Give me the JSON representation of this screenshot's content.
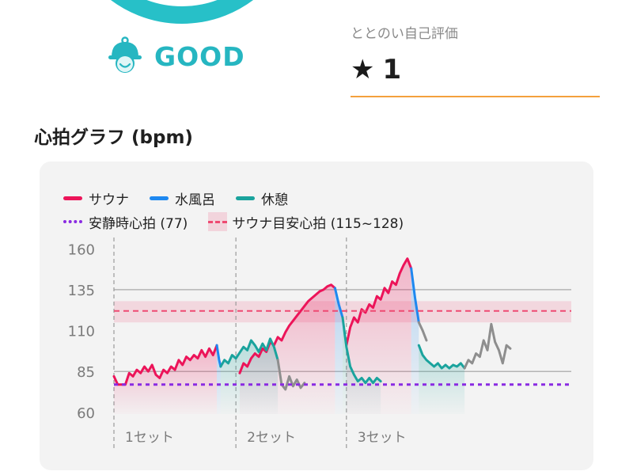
{
  "status": {
    "label": "GOOD",
    "icon": "hat-face-icon",
    "color": "#26b6c1"
  },
  "self_rating": {
    "label": "ととのい自己評価",
    "icon": "star-icon",
    "value": "1"
  },
  "section_title": "心拍グラフ (bpm)",
  "legend": {
    "sauna": "サウナ",
    "cold_bath": "水風呂",
    "rest": "休憩",
    "resting_hr": "安静時心拍 (77)",
    "target_hr": "サウナ目安心拍 (115~128)"
  },
  "colors": {
    "sauna": "#ec1459",
    "cold_bath": "#1e88f0",
    "rest": "#1aa39d",
    "other": "#8e8e8e",
    "resting": "#8a2be2",
    "target": "#ee4a72"
  },
  "chart_data": {
    "type": "line",
    "ylim": [
      58,
      164
    ],
    "yticks": [
      60,
      85,
      110,
      135,
      160
    ],
    "resting_hr": 77,
    "target_band": [
      115,
      128
    ],
    "target_line": 122,
    "set_labels": [
      "1セット",
      "2セット",
      "3セット"
    ],
    "set_starts": [
      0,
      16,
      30.5
    ],
    "xlim": [
      0,
      60
    ],
    "series": [
      {
        "name": "サウナ",
        "kind": "sauna",
        "points": [
          [
            0,
            82
          ],
          [
            0.5,
            77
          ],
          [
            1.5,
            77
          ],
          [
            2,
            84
          ],
          [
            2.5,
            82
          ],
          [
            3,
            86
          ],
          [
            3.5,
            84
          ],
          [
            4,
            88
          ],
          [
            4.5,
            85
          ],
          [
            5,
            89
          ],
          [
            5.5,
            83
          ],
          [
            6,
            81
          ],
          [
            6.5,
            86
          ],
          [
            7,
            84
          ],
          [
            7.5,
            88
          ],
          [
            8,
            86
          ],
          [
            8.5,
            92
          ],
          [
            9,
            89
          ],
          [
            9.5,
            94
          ],
          [
            10,
            92
          ],
          [
            10.5,
            95
          ],
          [
            11,
            93
          ],
          [
            11.5,
            98
          ],
          [
            12,
            94
          ],
          [
            12.5,
            99
          ],
          [
            13,
            95
          ],
          [
            13.5,
            101
          ],
          [
            16.5,
            84
          ],
          [
            17,
            90
          ],
          [
            17.5,
            88
          ],
          [
            18,
            93
          ],
          [
            18.5,
            96
          ],
          [
            19,
            94
          ],
          [
            19.5,
            99
          ],
          [
            20,
            97
          ],
          [
            20.5,
            103
          ],
          [
            21,
            101
          ],
          [
            21.5,
            106
          ],
          [
            22,
            104
          ],
          [
            22.5,
            109
          ],
          [
            23,
            113
          ],
          [
            23.5,
            116
          ],
          [
            24,
            119
          ],
          [
            24.5,
            122
          ],
          [
            25,
            125
          ],
          [
            25.5,
            128
          ],
          [
            26,
            130
          ],
          [
            26.5,
            132
          ],
          [
            27,
            134
          ],
          [
            27.5,
            135
          ],
          [
            28,
            137
          ],
          [
            28.5,
            138
          ],
          [
            29,
            136
          ],
          [
            30.5,
            101
          ],
          [
            31,
            112
          ],
          [
            31.5,
            118
          ],
          [
            32,
            115
          ],
          [
            32.5,
            123
          ],
          [
            33,
            121
          ],
          [
            33.5,
            126
          ],
          [
            34,
            124
          ],
          [
            34.5,
            131
          ],
          [
            35,
            129
          ],
          [
            35.5,
            136
          ],
          [
            36,
            133
          ],
          [
            36.5,
            140
          ],
          [
            37,
            138
          ],
          [
            37.5,
            145
          ],
          [
            38,
            150
          ],
          [
            38.5,
            154
          ],
          [
            39,
            148
          ]
        ]
      },
      {
        "name": "水風呂",
        "kind": "cold_bath",
        "points": [
          [
            13.5,
            101
          ],
          [
            13.8,
            92
          ],
          [
            14,
            88
          ],
          [
            29,
            136
          ],
          [
            29.5,
            126
          ],
          [
            30,
            118
          ],
          [
            39,
            148
          ],
          [
            39.5,
            130
          ],
          [
            40,
            115
          ]
        ]
      },
      {
        "name": "休憩",
        "kind": "rest",
        "points": [
          [
            14,
            88
          ],
          [
            14.5,
            92
          ],
          [
            15,
            90
          ],
          [
            15.5,
            95
          ],
          [
            16,
            93
          ],
          [
            17,
            100
          ],
          [
            17.5,
            98
          ],
          [
            18,
            104
          ],
          [
            18.5,
            101
          ],
          [
            19,
            97
          ],
          [
            19.5,
            102
          ],
          [
            20,
            98
          ],
          [
            20.5,
            105
          ],
          [
            21,
            100
          ],
          [
            21.5,
            92
          ],
          [
            30,
            118
          ],
          [
            30.5,
            100
          ],
          [
            31,
            88
          ],
          [
            31.5,
            83
          ],
          [
            32,
            79
          ],
          [
            32.5,
            81
          ],
          [
            33,
            78
          ],
          [
            33.5,
            81
          ],
          [
            34,
            78
          ],
          [
            34.5,
            81
          ],
          [
            35,
            79
          ],
          [
            40,
            101
          ],
          [
            40.5,
            95
          ],
          [
            41,
            92
          ],
          [
            41.5,
            90
          ],
          [
            42,
            88
          ],
          [
            42.5,
            90
          ],
          [
            43,
            87
          ],
          [
            43.5,
            89
          ],
          [
            44,
            87
          ],
          [
            44.5,
            89
          ],
          [
            45,
            88
          ],
          [
            45.5,
            90
          ],
          [
            46,
            87
          ]
        ]
      },
      {
        "name": "",
        "kind": "other",
        "points": [
          [
            21.5,
            92
          ],
          [
            22,
            77
          ],
          [
            22.5,
            74
          ],
          [
            23,
            82
          ],
          [
            23.5,
            76
          ],
          [
            24,
            80
          ],
          [
            24.5,
            75
          ],
          [
            25,
            78
          ],
          [
            40,
            115
          ],
          [
            40.5,
            110
          ],
          [
            41,
            104
          ],
          [
            46,
            87
          ],
          [
            46.5,
            92
          ],
          [
            47,
            90
          ],
          [
            47.5,
            96
          ],
          [
            48,
            94
          ],
          [
            48.5,
            104
          ],
          [
            49,
            98
          ],
          [
            49.5,
            114
          ],
          [
            50,
            103
          ],
          [
            50.5,
            98
          ],
          [
            51,
            90
          ],
          [
            51.5,
            101
          ],
          [
            52,
            99
          ]
        ]
      }
    ]
  }
}
